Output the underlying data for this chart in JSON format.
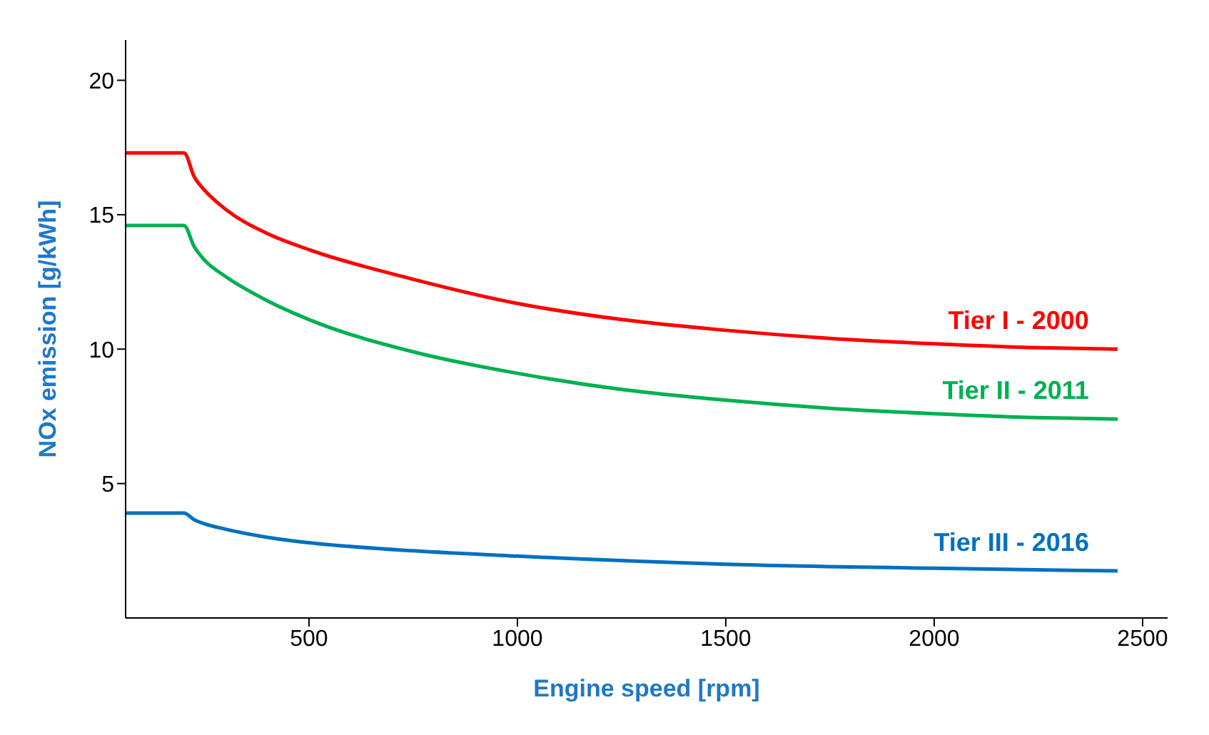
{
  "chart_data": {
    "type": "line",
    "xlabel": "Engine speed [rpm]",
    "ylabel": "NOx emission [g/kWh]",
    "xlim": [
      60,
      2560
    ],
    "ylim": [
      0,
      21.5
    ],
    "xticks": [
      500,
      1000,
      1500,
      2000,
      2500
    ],
    "yticks": [
      5,
      10,
      15,
      20
    ],
    "grid": false,
    "legend": false,
    "marker": "none",
    "line_style": "solid",
    "series": [
      {
        "name": "Tier I - 2000",
        "color": "#ff0000",
        "x": [
          60,
          200,
          225,
          250,
          300,
          400,
          500,
          750,
          1000,
          1250,
          1500,
          1750,
          2000,
          2250,
          2440
        ],
        "values": [
          17.3,
          17.3,
          16.4,
          15.9,
          15.2,
          14.3,
          13.7,
          12.6,
          11.7,
          11.1,
          10.7,
          10.4,
          10.2,
          10.05,
          10.0
        ]
      },
      {
        "name": "Tier II - 2011",
        "color": "#00b050",
        "x": [
          60,
          200,
          225,
          250,
          300,
          400,
          500,
          750,
          1000,
          1250,
          1500,
          1750,
          2000,
          2250,
          2440
        ],
        "values": [
          14.6,
          14.6,
          13.8,
          13.3,
          12.7,
          11.8,
          11.1,
          9.9,
          9.1,
          8.5,
          8.1,
          7.8,
          7.6,
          7.45,
          7.4
        ]
      },
      {
        "name": "Tier III - 2016",
        "color": "#0070c0",
        "x": [
          60,
          200,
          225,
          250,
          300,
          400,
          500,
          750,
          1000,
          1500,
          2000,
          2440
        ],
        "values": [
          3.9,
          3.9,
          3.65,
          3.5,
          3.3,
          3.0,
          2.8,
          2.5,
          2.3,
          2.0,
          1.85,
          1.75
        ]
      }
    ]
  }
}
